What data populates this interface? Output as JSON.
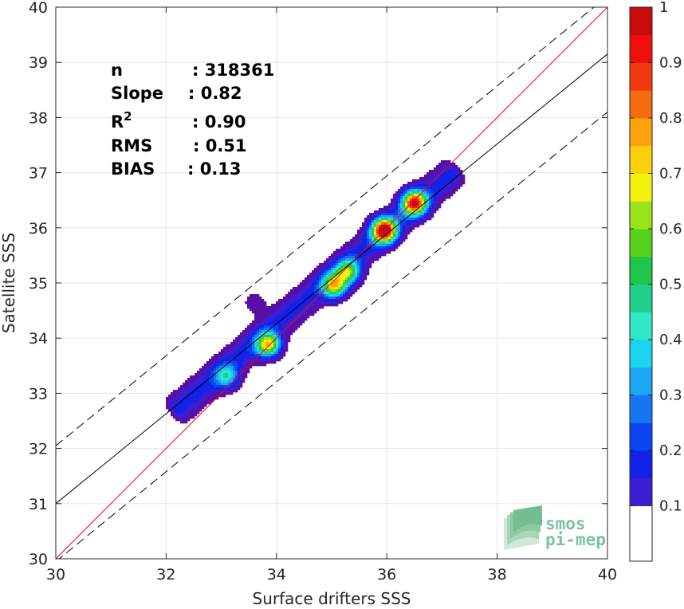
{
  "chart_data": {
    "type": "heatmap",
    "subtype": "filled-contour density scatter",
    "xlabel": "Surface drifters SSS",
    "ylabel": "Satellite SSS",
    "xlim": [
      30,
      40
    ],
    "ylim": [
      30,
      40
    ],
    "xticks": [
      30,
      32,
      34,
      36,
      38,
      40
    ],
    "yticks": [
      30,
      31,
      32,
      33,
      34,
      35,
      36,
      37,
      38,
      39,
      40
    ],
    "grid": true,
    "stats": [
      {
        "label": "n",
        "value": ": 318361"
      },
      {
        "label": "Slope",
        "value": ": 0.82"
      },
      {
        "label": "R",
        "sup": "2",
        "value": ": 0.90"
      },
      {
        "label": "RMS",
        "value": ": 0.51"
      },
      {
        "label": "BIAS",
        "value": ": 0.13"
      }
    ],
    "lines": [
      {
        "name": "identity",
        "color": "#ff0000",
        "style": "solid",
        "x": [
          30,
          40
        ],
        "y": [
          30,
          40
        ]
      },
      {
        "name": "regression",
        "color": "#000000",
        "style": "solid",
        "x": [
          30,
          40
        ],
        "y": [
          31.0,
          39.15
        ]
      },
      {
        "name": "upper bound",
        "color": "#000000",
        "style": "dashed",
        "x": [
          30,
          40
        ],
        "y": [
          32.05,
          40.2
        ]
      },
      {
        "name": "lower bound",
        "color": "#000000",
        "style": "dashed",
        "x": [
          30,
          40
        ],
        "y": [
          29.95,
          38.1
        ]
      }
    ],
    "density_axis": {
      "x0": 32.2,
      "y0": 32.7,
      "x1": 37.2,
      "y1": 37.0,
      "halfwidth_sal": 0.19,
      "peaks": [
        {
          "x": 33.1,
          "y": 33.3,
          "value": 0.32
        },
        {
          "x": 33.85,
          "y": 33.88,
          "value": 0.65
        },
        {
          "x": 35.05,
          "y": 34.95,
          "value": 0.62
        },
        {
          "x": 35.3,
          "y": 35.2,
          "value": 0.5
        },
        {
          "x": 35.95,
          "y": 35.95,
          "value": 1.0
        },
        {
          "x": 36.5,
          "y": 36.45,
          "value": 0.85
        }
      ]
    },
    "colorbar": {
      "min": 0,
      "max": 1,
      "ticks": [
        0.1,
        0.2,
        0.3,
        0.4,
        0.5,
        0.6,
        0.7,
        0.8,
        0.9,
        1
      ],
      "tick_labels": [
        "0.1",
        "0.2",
        "0.3",
        "0.4",
        "0.5",
        "0.6",
        "0.7",
        "0.8",
        "0.9",
        "1"
      ],
      "levels": [
        0.05,
        0.1,
        0.15,
        0.2,
        0.25,
        0.3,
        0.35,
        0.4,
        0.45,
        0.5,
        0.55,
        0.6,
        0.65,
        0.7,
        0.75,
        0.8,
        0.85,
        0.9,
        0.95
      ],
      "colors": [
        "#ffffff",
        "#5b0ea6",
        "#3a1ed2",
        "#1222e8",
        "#0b46f2",
        "#1576f2",
        "#1fa6f2",
        "#1bd2f0",
        "#2ee8c8",
        "#20d08a",
        "#1fc64a",
        "#56d21e",
        "#9ae21a",
        "#f2f20e",
        "#fcd00c",
        "#fca20a",
        "#f66a12",
        "#f03a10",
        "#f00e0e",
        "#c80a0a",
        "#8c0404"
      ]
    }
  },
  "logo": {
    "line1": "smos",
    "line2": "pi-mep"
  }
}
